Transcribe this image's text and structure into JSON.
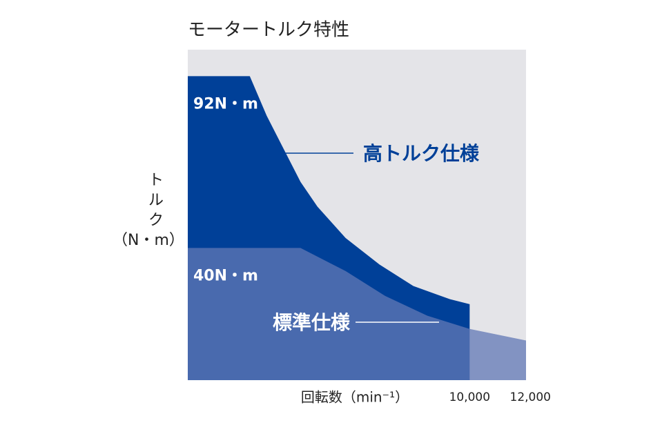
{
  "chart_data": {
    "type": "area",
    "title": "モータートルク特性",
    "ylabel": [
      "ト",
      "ル",
      "ク",
      "（N・m）"
    ],
    "xlabel": "回転数（min⁻¹）",
    "xlim": [
      0,
      12000
    ],
    "ylim": [
      0,
      100
    ],
    "xticks": [
      {
        "value": 10000,
        "label": "10,000"
      },
      {
        "value": 12000,
        "label": "12,000"
      }
    ],
    "background": "#e4e4e8",
    "series": [
      {
        "name": "高トルク仕様",
        "color": "#004098",
        "opacity": 1,
        "x": [
          0,
          2200,
          2800,
          3400,
          4000,
          4600,
          5600,
          6800,
          8000,
          9300,
          10000
        ],
        "values": [
          92,
          92,
          80,
          70,
          60,
          52.5,
          43,
          35,
          28.5,
          24.5,
          23
        ]
      },
      {
        "name": "標準仕様",
        "color": "#6178b5",
        "opacity": 0.75,
        "x": [
          0,
          4000,
          5600,
          7000,
          8500,
          10000,
          12000
        ],
        "values": [
          40,
          40,
          33,
          25.5,
          19.5,
          15.5,
          12
        ]
      }
    ],
    "annotations": [
      {
        "text": "92N・m",
        "value": 92
      },
      {
        "text": "40N・m",
        "value": 40
      }
    ]
  }
}
